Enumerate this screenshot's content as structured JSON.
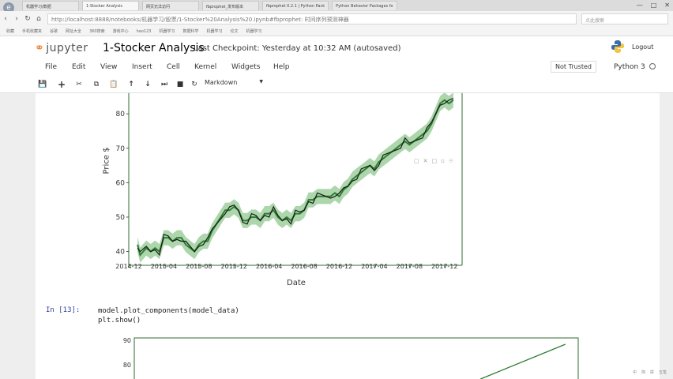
{
  "browser": {
    "tabs": [
      {
        "label": "机器学习/数据",
        "active": false
      },
      {
        "label": "1-Stocker Analysis",
        "active": true
      },
      {
        "label": "网页无法访问",
        "active": false
      },
      {
        "label": "fbprophet_发布版本",
        "active": false
      },
      {
        "label": "fbprophet 0.2.1 | Python Pack",
        "active": false
      },
      {
        "label": "Python Behavior Packages fo",
        "active": false
      }
    ],
    "url": "http://localhost:8888/notebooks/机器学习/股票/1-Stocker%20Analysis%20.ipynb#fbprophet: 时间序列预测神器",
    "search_placeholder": "点此搜索",
    "bookmarks": [
      "收藏",
      "手机收藏夹",
      "谷歌",
      "网址大全",
      "360搜索",
      "游戏中心",
      "hao123",
      "机器学习",
      "数据科学",
      "机器学习",
      "论文",
      "机器学习"
    ]
  },
  "jupyter": {
    "logo_text": "jupyter",
    "notebook_title": "1-Stocker Analysis",
    "checkpoint": "Last Checkpoint: Yesterday at 10:32 AM (autosaved)",
    "logout": "Logout",
    "menu": [
      "File",
      "Edit",
      "View",
      "Insert",
      "Cell",
      "Kernel",
      "Widgets",
      "Help"
    ],
    "trust": "Not Trusted",
    "kernel": "Python 3",
    "cell_type": "Markdown",
    "toolbar_icons": [
      "save-icon",
      "add-icon",
      "cut-icon",
      "copy-icon",
      "paste-icon",
      "move-up-icon",
      "move-down-icon",
      "skip-icon",
      "stop-icon",
      "restart-icon"
    ]
  },
  "cell": {
    "prompt": "In [13]:",
    "code_line1": "model.plot_components(model_data)",
    "code_line2": "plt.show()"
  },
  "colors": {
    "actual": "#1a1a1a",
    "forecast": "#2e7d32",
    "band": "#9fcf9f",
    "frame": "#2f6b2f"
  },
  "chart_data": {
    "type": "line",
    "xlabel": "Date",
    "ylabel": "Price $",
    "xticks": [
      "2014-12",
      "2015-04",
      "2015-08",
      "2015-12",
      "2016-04",
      "2016-08",
      "2016-12",
      "2017-04",
      "2017-08",
      "2017-12"
    ],
    "yticks": [
      40,
      50,
      60,
      70,
      80
    ],
    "ylim": [
      36,
      86
    ],
    "xlim_months": [
      0,
      38
    ],
    "series": [
      {
        "points": [
          [
            1.0,
            42
          ],
          [
            1.3,
            39
          ],
          [
            2.0,
            41
          ],
          [
            2.5,
            40
          ],
          [
            3.0,
            41
          ],
          [
            3.5,
            40
          ],
          [
            4.0,
            44
          ],
          [
            4.5,
            44
          ],
          [
            5.0,
            43
          ],
          [
            5.5,
            44
          ],
          [
            6.0,
            44
          ],
          [
            6.5,
            42
          ],
          [
            7.0,
            41
          ],
          [
            7.5,
            40
          ],
          [
            8.0,
            42
          ],
          [
            8.5,
            43
          ],
          [
            9.0,
            43
          ],
          [
            9.5,
            46
          ],
          [
            10.0,
            48
          ],
          [
            10.5,
            50
          ],
          [
            11.0,
            52
          ],
          [
            11.5,
            52
          ],
          [
            12.0,
            53
          ],
          [
            12.5,
            52
          ],
          [
            13.0,
            49
          ],
          [
            13.5,
            49
          ],
          [
            14.0,
            50
          ],
          [
            14.5,
            50
          ],
          [
            15.0,
            49
          ],
          [
            15.5,
            51
          ],
          [
            16.0,
            51
          ],
          [
            16.5,
            52
          ],
          [
            17.0,
            50
          ],
          [
            17.5,
            49
          ],
          [
            18.0,
            50
          ],
          [
            18.5,
            49
          ],
          [
            19.0,
            51
          ],
          [
            19.5,
            51
          ],
          [
            20.0,
            52
          ],
          [
            20.5,
            55
          ],
          [
            21.0,
            55
          ],
          [
            21.5,
            56
          ],
          [
            22.0,
            56
          ],
          [
            22.5,
            56
          ],
          [
            23.0,
            56
          ],
          [
            23.5,
            57
          ],
          [
            24.0,
            56
          ],
          [
            24.5,
            58
          ],
          [
            25.0,
            59
          ],
          [
            25.5,
            61
          ],
          [
            26.0,
            62
          ],
          [
            26.5,
            63
          ],
          [
            27.0,
            64
          ],
          [
            27.5,
            65
          ],
          [
            28.0,
            64
          ],
          [
            28.5,
            66
          ],
          [
            29.0,
            67
          ],
          [
            29.5,
            68
          ],
          [
            30.0,
            69
          ],
          [
            30.5,
            70
          ],
          [
            31.0,
            71
          ],
          [
            31.5,
            72
          ],
          [
            32.0,
            71
          ],
          [
            32.5,
            72
          ],
          [
            33.0,
            73
          ],
          [
            33.5,
            74
          ],
          [
            34.0,
            75
          ],
          [
            34.5,
            77
          ],
          [
            35.0,
            80
          ],
          [
            35.5,
            83
          ],
          [
            36.0,
            84
          ],
          [
            36.5,
            83
          ],
          [
            37.0,
            84
          ]
        ]
      }
    ]
  },
  "chart_data_2": {
    "type": "line",
    "yticks": [
      90,
      80
    ],
    "ylim": [
      75,
      92
    ],
    "points": [
      [
        0.78,
        75
      ],
      [
        0.9,
        90
      ]
    ]
  },
  "tray": [
    "中",
    "简",
    "拼",
    "五笔"
  ]
}
